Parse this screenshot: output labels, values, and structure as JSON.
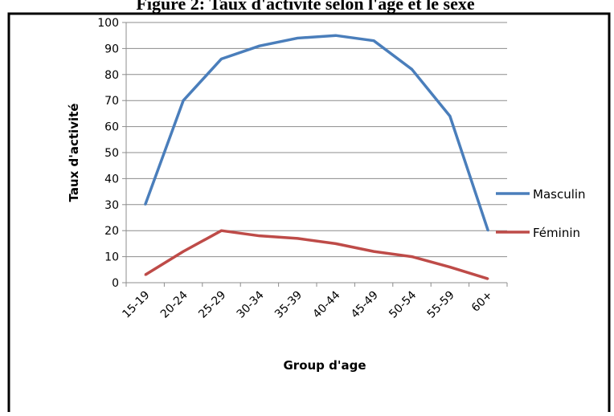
{
  "chart_data": {
    "type": "line",
    "title": "Figure 2: Taux d'activité selon l'âge et le sexe",
    "xlabel": "Group d'age",
    "ylabel": "Taux d'activité",
    "categories": [
      "15-19",
      "20-24",
      "25-29",
      "30-34",
      "35-39",
      "40-44",
      "45-49",
      "50-54",
      "55-59",
      "60+"
    ],
    "ylim": [
      0,
      100
    ],
    "yticks": [
      0,
      10,
      20,
      30,
      40,
      50,
      60,
      70,
      80,
      90,
      100
    ],
    "grid": true,
    "legend_position": "right",
    "series": [
      {
        "name": "Masculin",
        "color": "#4a7ebb",
        "values": [
          30,
          70,
          86,
          91,
          94,
          95,
          93,
          82,
          64,
          20
        ]
      },
      {
        "name": "Féminin",
        "color": "#be4b48",
        "values": [
          3,
          12,
          20,
          18,
          17,
          15,
          12,
          10,
          6,
          1.5
        ]
      }
    ]
  }
}
